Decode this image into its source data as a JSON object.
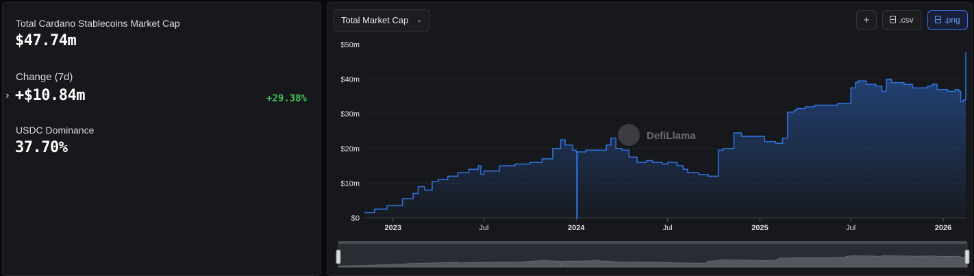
{
  "stats": {
    "market_cap_label": "Total Cardano Stablecoins Market Cap",
    "market_cap_value": "$47.74m",
    "change_label": "Change (7d)",
    "change_value": "+$10.84m",
    "change_percent": "+29.38%",
    "dominance_label": "USDC Dominance",
    "dominance_value": "37.70%"
  },
  "toolbar": {
    "dropdown_label": "Total Market Cap",
    "add_label": "+",
    "csv_label": ".csv",
    "png_label": ".png"
  },
  "watermark": {
    "text": "DefiLlama"
  },
  "colors": {
    "line": "#2f6fd8",
    "positive": "#3fc35a",
    "accent": "#3b6ef0",
    "background": "#17181b"
  },
  "chart_data": {
    "type": "area",
    "title": "Total Market Cap",
    "xlabel": "",
    "ylabel": "",
    "ylim": [
      0,
      50
    ],
    "y_unit": "$m",
    "yticks": [
      "$0",
      "$10m",
      "$20m",
      "$30m",
      "$40m",
      "$50m"
    ],
    "xticks": [
      {
        "label": "2023",
        "x": "2023-01-01",
        "major": true
      },
      {
        "label": "Jul",
        "x": "2023-07-01",
        "major": false
      },
      {
        "label": "2024",
        "x": "2024-01-01",
        "major": true
      },
      {
        "label": "Jul",
        "x": "2024-07-01",
        "major": false
      },
      {
        "label": "2025",
        "x": "2025-01-01",
        "major": true
      },
      {
        "label": "Jul",
        "x": "2025-07-01",
        "major": false
      },
      {
        "label": "2026",
        "x": "2026-01-01",
        "major": true
      }
    ],
    "grid": true,
    "legend": "none",
    "series": [
      {
        "x": [
          "2022-11-05",
          "2022-11-25",
          "2022-12-20",
          "2023-01-20",
          "2023-02-10",
          "2023-02-20",
          "2023-03-05",
          "2023-03-20",
          "2023-04-01",
          "2023-04-20",
          "2023-05-10",
          "2023-06-01",
          "2023-06-20",
          "2023-06-25",
          "2023-07-01",
          "2023-08-01",
          "2023-09-01",
          "2023-10-01",
          "2023-10-25",
          "2023-11-15",
          "2023-12-01",
          "2023-12-10",
          "2023-12-25",
          "2024-01-01",
          "2024-01-02",
          "2024-01-03",
          "2024-01-20",
          "2024-02-10",
          "2024-03-01",
          "2024-03-10",
          "2024-03-20",
          "2024-04-01",
          "2024-04-15",
          "2024-05-01",
          "2024-05-20",
          "2024-06-01",
          "2024-06-20",
          "2024-07-01",
          "2024-07-20",
          "2024-08-01",
          "2024-08-10",
          "2024-09-01",
          "2024-09-20",
          "2024-10-05",
          "2024-10-10",
          "2024-10-20",
          "2024-11-10",
          "2024-11-25",
          "2024-12-20",
          "2025-01-10",
          "2025-02-01",
          "2025-02-15",
          "2025-02-25",
          "2025-03-10",
          "2025-03-15",
          "2025-04-01",
          "2025-04-20",
          "2025-05-20",
          "2025-06-05",
          "2025-06-25",
          "2025-07-01",
          "2025-07-10",
          "2025-07-15",
          "2025-08-01",
          "2025-08-20",
          "2025-09-01",
          "2025-09-10",
          "2025-09-20",
          "2025-10-01",
          "2025-10-15",
          "2025-11-01",
          "2025-11-20",
          "2025-12-01",
          "2025-12-10",
          "2025-12-20",
          "2026-01-10",
          "2026-01-25",
          "2026-02-01",
          "2026-02-05",
          "2026-02-10",
          "2026-02-15"
        ],
        "values": [
          1.5,
          2.5,
          3.5,
          5.5,
          7.0,
          9.0,
          8.0,
          10.5,
          11.0,
          12.0,
          13.0,
          14.0,
          15.0,
          12.5,
          13.5,
          15.0,
          15.5,
          16.0,
          17.0,
          20.0,
          22.5,
          21.0,
          19.5,
          19.0,
          0.0,
          19.0,
          19.5,
          19.5,
          21.0,
          23.0,
          20.0,
          19.5,
          17.5,
          16.0,
          16.5,
          16.0,
          15.5,
          16.0,
          15.0,
          14.0,
          13.0,
          12.5,
          12.0,
          12.0,
          19.5,
          20.0,
          24.5,
          23.5,
          23.5,
          22.0,
          21.5,
          23.0,
          30.5,
          31.0,
          31.5,
          32.0,
          32.5,
          32.5,
          33.0,
          33.0,
          37.5,
          39.0,
          39.5,
          38.5,
          38.0,
          36.5,
          40.0,
          39.0,
          39.0,
          38.5,
          37.5,
          37.5,
          38.0,
          38.5,
          37.0,
          36.5,
          37.0,
          36.5,
          33.5,
          34.0,
          47.74
        ]
      }
    ]
  }
}
